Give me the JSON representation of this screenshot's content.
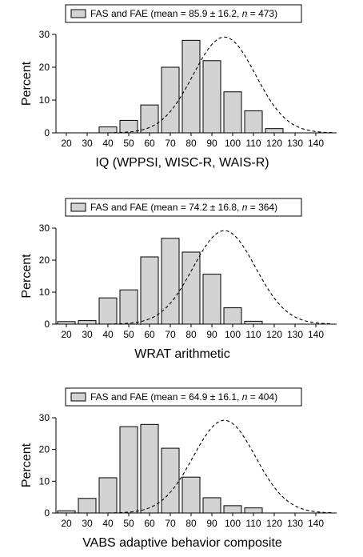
{
  "chart_data": [
    {
      "type": "bar",
      "legend": {
        "label_prefix": "FAS and FAE (mean = 85.9 ± 16.2, ",
        "n_symbol": "n",
        "label_suffix": " = 473)",
        "position": "top"
      },
      "xlabel": "IQ (WPPSI, WISC-R, WAIS-R)",
      "ylabel": "Percent",
      "x_ticks": [
        "20",
        "30",
        "40",
        "50",
        "60",
        "70",
        "80",
        "90",
        "100",
        "110",
        "120",
        "130",
        "140"
      ],
      "y_ticks": [
        "0",
        "10",
        "20",
        "30"
      ],
      "ylim": [
        0,
        30
      ],
      "xlim": [
        15,
        150
      ],
      "bars": {
        "x": [
          20,
          30,
          40,
          50,
          60,
          70,
          80,
          90,
          100,
          110,
          120,
          130,
          140
        ],
        "values": [
          0,
          0,
          1.8,
          3.8,
          8.5,
          20,
          28.2,
          22,
          12.5,
          6.7,
          1.3,
          0,
          0
        ]
      },
      "reference_curve": {
        "style": "dashed",
        "mean": 96,
        "peak": 29.2,
        "sd": 15
      }
    },
    {
      "type": "bar",
      "legend": {
        "label_prefix": "FAS and FAE (mean = 74.2 ± 16.8, ",
        "n_symbol": "n",
        "label_suffix": " = 364)",
        "position": "top"
      },
      "xlabel": "WRAT arithmetic",
      "ylabel": "Percent",
      "x_ticks": [
        "20",
        "30",
        "40",
        "50",
        "60",
        "70",
        "80",
        "90",
        "100",
        "110",
        "120",
        "130",
        "140"
      ],
      "y_ticks": [
        "0",
        "10",
        "20",
        "30"
      ],
      "ylim": [
        0,
        30
      ],
      "xlim": [
        15,
        150
      ],
      "bars": {
        "x": [
          20,
          30,
          40,
          50,
          60,
          70,
          80,
          90,
          100,
          110,
          120,
          130,
          140
        ],
        "values": [
          0.8,
          1.1,
          8.2,
          10.7,
          21,
          26.8,
          22.5,
          15.6,
          5.1,
          0.9,
          0,
          0,
          0
        ]
      },
      "reference_curve": {
        "style": "dashed",
        "mean": 96,
        "peak": 29.2,
        "sd": 15
      }
    },
    {
      "type": "bar",
      "legend": {
        "label_prefix": "FAS and FAE (mean = 64.9 ± 16.1, ",
        "n_symbol": "n",
        "label_suffix": " = 404)",
        "position": "top"
      },
      "xlabel": "VABS adaptive behavior composite",
      "ylabel": "Percent",
      "x_ticks": [
        "20",
        "30",
        "40",
        "50",
        "60",
        "70",
        "80",
        "90",
        "100",
        "110",
        "120",
        "130",
        "140"
      ],
      "y_ticks": [
        "0",
        "10",
        "20",
        "30"
      ],
      "ylim": [
        0,
        30
      ],
      "xlim": [
        15,
        150
      ],
      "bars": {
        "x": [
          20,
          30,
          40,
          50,
          60,
          70,
          80,
          90,
          100,
          110,
          120,
          130,
          140
        ],
        "values": [
          0.7,
          4.6,
          11.1,
          27.2,
          27.9,
          20.4,
          11.3,
          4.8,
          2.3,
          1.6,
          0,
          0,
          0
        ]
      },
      "reference_curve": {
        "style": "dashed",
        "mean": 96,
        "peak": 29.2,
        "sd": 15
      }
    }
  ]
}
